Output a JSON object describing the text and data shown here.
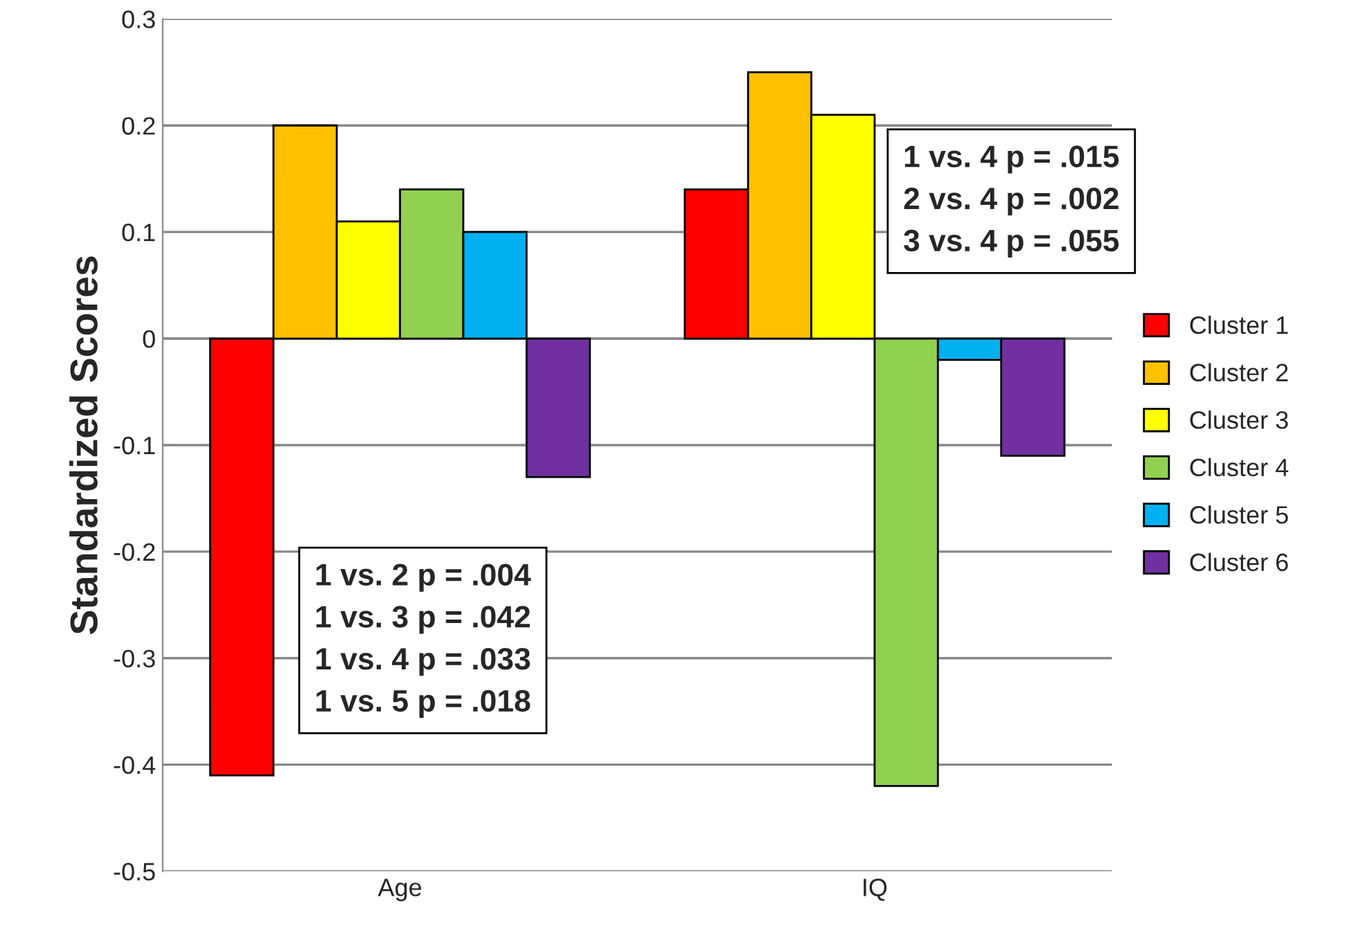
{
  "chart_data": {
    "type": "bar",
    "ylabel": "Standardized Scores",
    "categories": [
      "Age",
      "IQ"
    ],
    "series": [
      {
        "name": "Cluster 1",
        "color": "#ff0000",
        "values": [
          -0.41,
          0.14
        ]
      },
      {
        "name": "Cluster 2",
        "color": "#ffc000",
        "values": [
          0.2,
          0.25
        ]
      },
      {
        "name": "Cluster 3",
        "color": "#ffff00",
        "values": [
          0.11,
          0.21
        ]
      },
      {
        "name": "Cluster 4",
        "color": "#92d050",
        "values": [
          0.14,
          -0.42
        ]
      },
      {
        "name": "Cluster 5",
        "color": "#00b0f0",
        "values": [
          0.1,
          -0.02
        ]
      },
      {
        "name": "Cluster 6",
        "color": "#7030a0",
        "values": [
          -0.13,
          -0.11
        ]
      }
    ],
    "ylim": [
      -0.5,
      0.3
    ],
    "yticks": [
      -0.5,
      -0.4,
      -0.3,
      -0.2,
      -0.1,
      0,
      0.1,
      0.2,
      0.3
    ],
    "grid": "y",
    "legend": "right",
    "annotations": [
      "1 vs. 2 p = .004\n1 vs. 3 p = .042\n1 vs. 4 p = .033\n1 vs. 5 p = .018",
      "1 vs. 4 p = .015\n2 vs. 4 p = .002\n3 vs. 4 p = .055"
    ]
  }
}
